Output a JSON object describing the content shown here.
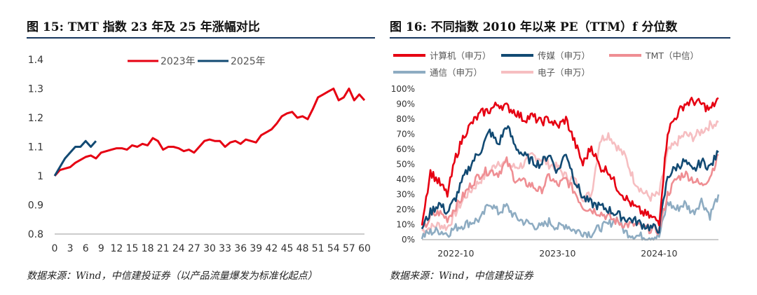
{
  "left_panel": {
    "title": "图 15: TMT 指数 23 年及 25 年涨幅对比",
    "source": "数据来源：Wind，中信建投证券（以产品流量爆发为标准化起点）"
  },
  "right_panel": {
    "title": "图 16:  不同指数 2010 年以来 PE（TTM）f 分位数",
    "source": "数据来源：Wind，中信建投证券"
  },
  "colors": {
    "rule": "#17375e",
    "red": "#e60012",
    "navy": "#124a73",
    "pink": "#ef8e93",
    "steel": "#8eacc2",
    "lightpink": "#f6bec1"
  },
  "chart_data": [
    {
      "type": "line",
      "title": "",
      "xlabel": "",
      "ylabel": "",
      "xlim": [
        0,
        60
      ],
      "ylim": [
        0.8,
        1.4
      ],
      "x_ticks": [
        "0",
        "3",
        "6",
        "9",
        "12",
        "15",
        "18",
        "21",
        "24",
        "27",
        "30",
        "33",
        "36",
        "39",
        "42",
        "45",
        "48",
        "51",
        "54",
        "57",
        "60"
      ],
      "y_ticks": [
        "0.8",
        "0.9",
        "1",
        "1.1",
        "1.2",
        "1.3",
        "1.4"
      ],
      "legend_position": "top-center",
      "series": [
        {
          "name": "2023年",
          "color": "#e60012",
          "x": [
            0,
            1,
            2,
            3,
            4,
            5,
            6,
            7,
            8,
            9,
            10,
            11,
            12,
            13,
            14,
            15,
            16,
            17,
            18,
            19,
            20,
            21,
            22,
            23,
            24,
            25,
            26,
            27,
            28,
            29,
            30,
            31,
            32,
            33,
            34,
            35,
            36,
            37,
            38,
            39,
            40,
            41,
            42,
            43,
            44,
            45,
            46,
            47,
            48,
            49,
            50,
            51,
            52,
            53,
            54,
            55,
            56,
            57,
            58,
            59,
            60
          ],
          "y": [
            1.0,
            1.02,
            1.025,
            1.03,
            1.045,
            1.055,
            1.065,
            1.07,
            1.06,
            1.08,
            1.085,
            1.09,
            1.095,
            1.095,
            1.09,
            1.105,
            1.1,
            1.11,
            1.105,
            1.13,
            1.12,
            1.09,
            1.1,
            1.1,
            1.095,
            1.085,
            1.09,
            1.08,
            1.1,
            1.12,
            1.125,
            1.12,
            1.12,
            1.1,
            1.115,
            1.12,
            1.11,
            1.125,
            1.12,
            1.115,
            1.14,
            1.15,
            1.16,
            1.18,
            1.205,
            1.215,
            1.22,
            1.2,
            1.205,
            1.195,
            1.23,
            1.27,
            1.28,
            1.29,
            1.3,
            1.26,
            1.27,
            1.3,
            1.26,
            1.28,
            1.26
          ]
        },
        {
          "name": "2025年",
          "color": "#124a73",
          "x": [
            0,
            1,
            2,
            3,
            4,
            5,
            6,
            7,
            8
          ],
          "y": [
            1.0,
            1.03,
            1.06,
            1.08,
            1.1,
            1.1,
            1.12,
            1.1,
            1.12
          ]
        }
      ]
    },
    {
      "type": "line",
      "title": "",
      "xlabel": "",
      "ylabel": "",
      "x_range": [
        "2022-06",
        "2025-04"
      ],
      "x_ticks": [
        "2022-10",
        "2023-10",
        "2024-10"
      ],
      "ylim": [
        0,
        100
      ],
      "y_ticks": [
        "0%",
        "10%",
        "20%",
        "30%",
        "40%",
        "50%",
        "60%",
        "70%",
        "80%",
        "90%",
        "100%"
      ],
      "legend_position": "top",
      "sample_months": [
        0,
        1,
        2,
        3,
        4,
        5,
        6,
        7,
        8,
        9,
        10,
        11,
        12,
        13,
        14,
        15,
        16,
        17,
        18,
        19,
        20,
        21,
        22,
        23,
        24,
        25,
        26,
        27,
        28,
        29,
        30,
        31,
        32,
        33,
        34,
        35
      ],
      "series": [
        {
          "name": "计算机（申万）",
          "color": "#e60012",
          "values": [
            12,
            45,
            38,
            30,
            55,
            70,
            78,
            84,
            86,
            90,
            88,
            85,
            80,
            82,
            78,
            80,
            75,
            80,
            65,
            50,
            62,
            48,
            46,
            35,
            28,
            22,
            18,
            15,
            12,
            72,
            82,
            90,
            92,
            90,
            86,
            94
          ]
        },
        {
          "name": "传媒（申万）",
          "color": "#124a73",
          "values": [
            8,
            18,
            24,
            18,
            28,
            42,
            52,
            60,
            72,
            63,
            76,
            62,
            56,
            52,
            50,
            57,
            45,
            58,
            40,
            28,
            24,
            22,
            20,
            17,
            14,
            13,
            10,
            8,
            7,
            42,
            48,
            52,
            45,
            52,
            48,
            58
          ]
        },
        {
          "name": "TMT（中信）",
          "color": "#ef8e93",
          "values": [
            5,
            15,
            18,
            14,
            22,
            30,
            38,
            44,
            46,
            44,
            52,
            40,
            38,
            36,
            32,
            42,
            36,
            40,
            32,
            22,
            20,
            18,
            15,
            12,
            10,
            10,
            8,
            7,
            6,
            30,
            40,
            44,
            40,
            36,
            42,
            56
          ]
        },
        {
          "name": "通信（申万）",
          "color": "#8eacc2",
          "values": [
            2,
            5,
            6,
            4,
            8,
            10,
            12,
            14,
            25,
            18,
            22,
            15,
            12,
            10,
            8,
            12,
            8,
            10,
            6,
            5,
            4,
            8,
            10,
            14,
            5,
            3,
            2,
            2,
            2,
            25,
            20,
            24,
            18,
            26,
            16,
            30
          ]
        },
        {
          "name": "电子（申万）",
          "color": "#f6bec1",
          "values": [
            6,
            8,
            10,
            8,
            18,
            28,
            34,
            40,
            45,
            52,
            50,
            48,
            50,
            56,
            54,
            50,
            48,
            42,
            40,
            28,
            30,
            66,
            70,
            62,
            55,
            40,
            32,
            28,
            30,
            58,
            64,
            70,
            68,
            72,
            76,
            78
          ]
        }
      ]
    }
  ]
}
